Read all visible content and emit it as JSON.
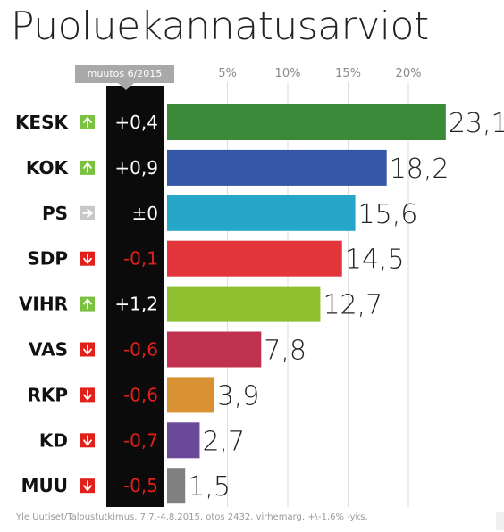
{
  "title": "Puoluekannatusarviot",
  "change_header": "muutos 6/2015",
  "footer": "Yle Uutiset/Taloustutkimus, 7.7.-4.8.2015, otos 2432, virhemarg. +\\-1,6% -yks.",
  "colors": {
    "up": "#7cc242",
    "neutral": "#c8c8c8",
    "down": "#e0201b",
    "change_positive_text": "#ffffff",
    "change_negative_text": "#e0201b"
  },
  "chart_data": {
    "type": "bar",
    "orientation": "horizontal",
    "title": "Puoluekannatusarviot",
    "xlim": [
      0,
      23.1
    ],
    "x_ticks": [
      "5%",
      "10%",
      "15%",
      "20%"
    ],
    "x_tick_values": [
      5,
      10,
      15,
      20
    ],
    "grid": true,
    "categories": [
      "KESK",
      "KOK",
      "PS",
      "SDP",
      "VIHR",
      "VAS",
      "RKP",
      "KD",
      "MUU"
    ],
    "values": [
      23.1,
      18.2,
      15.6,
      14.5,
      12.7,
      7.8,
      3.9,
      2.7,
      1.5
    ],
    "value_labels": [
      "23,1",
      "18,2",
      "15,6",
      "14,5",
      "12,7",
      "7,8",
      "3,9",
      "2,7",
      "1,5"
    ],
    "changes": [
      "+0,4",
      "+0,9",
      "±0",
      "-0,1",
      "+1,2",
      "-0,6",
      "-0,6",
      "-0,7",
      "-0,5"
    ],
    "trends": [
      "up",
      "up",
      "neutral",
      "down",
      "up",
      "down",
      "down",
      "down",
      "down"
    ],
    "bar_colors": [
      "#3a8a3a",
      "#3557a6",
      "#26a7c9",
      "#e2363c",
      "#8dbf2e",
      "#c0304f",
      "#d89234",
      "#6a489a",
      "#808080"
    ]
  }
}
